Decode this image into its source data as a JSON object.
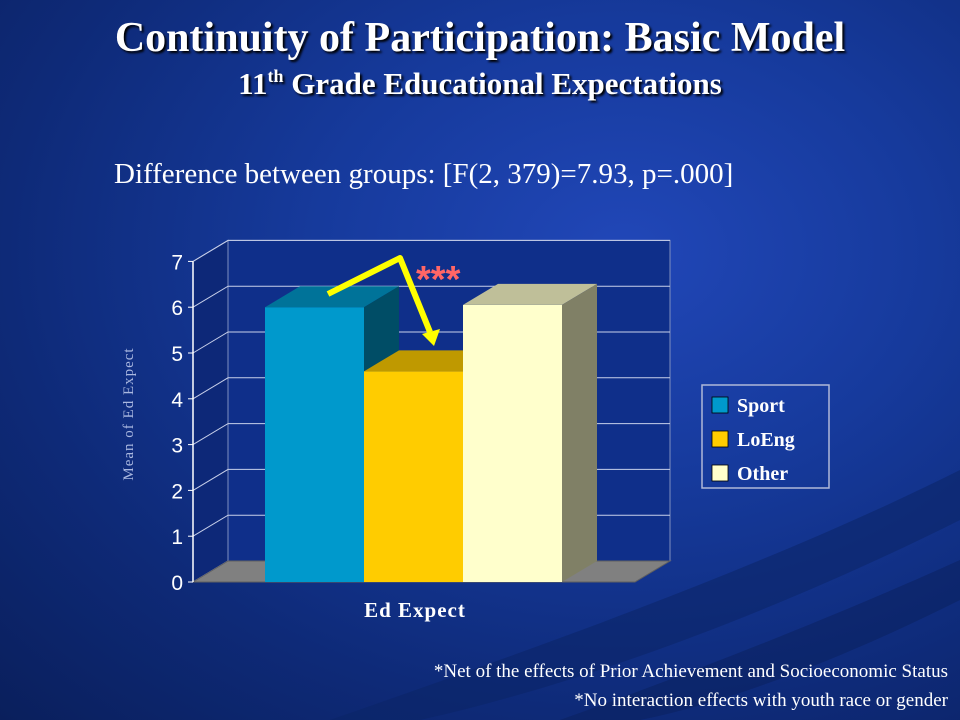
{
  "slide": {
    "title": "Continuity of Participation: Basic Model",
    "subtitle_main": "11",
    "subtitle_sup": "th",
    "subtitle_rest": " Grade Educational Expectations",
    "stat_text": "Difference between groups: [F(2, 379)=7.93, p=.000]",
    "significance_marker": "***",
    "footnotes": [
      "*Net of the effects of Prior Achievement and Socioeconomic Status",
      "*No interaction effects with youth race or gender"
    ]
  },
  "colors": {
    "background": "#163a9c",
    "sport": "#0099cc",
    "loeng": "#ffcc00",
    "other": "#ffffcc",
    "arrow": "#ffff00",
    "marker": "#ff6666"
  },
  "chart_data": {
    "type": "bar",
    "categories": [
      "Ed Expect"
    ],
    "series": [
      {
        "name": "Sport",
        "values": [
          6.0
        ]
      },
      {
        "name": "LoEng",
        "values": [
          4.6
        ]
      },
      {
        "name": "Other",
        "values": [
          6.05
        ]
      }
    ],
    "title": "",
    "xlabel": "Ed Expect",
    "ylabel": "Mean of Ed Expect",
    "ylim": [
      0,
      7
    ],
    "yticks": [
      "0",
      "1",
      "2",
      "3",
      "4",
      "5",
      "6",
      "7"
    ],
    "grid": true,
    "legend": "right",
    "style": "3d"
  }
}
